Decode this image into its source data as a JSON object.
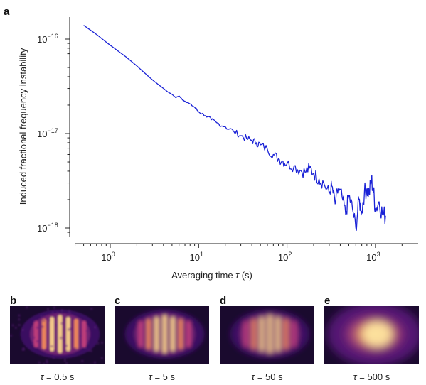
{
  "chart_data": [
    {
      "panel": "a",
      "type": "line",
      "xlabel_prefix": "Averaging time ",
      "xlabel_symbol": "τ",
      "xlabel_suffix": " (s)",
      "ylabel": "Induced fractional frequency instability",
      "xscale": "log",
      "yscale": "log",
      "xlim": [
        0.3,
        2000
      ],
      "ylim": [
        6e-19,
        2.2e-16
      ],
      "xticks": [
        {
          "value": 1,
          "base": "10",
          "exp": "0"
        },
        {
          "value": 10,
          "base": "10",
          "exp": "1"
        },
        {
          "value": 100,
          "base": "10",
          "exp": "2"
        },
        {
          "value": 1000,
          "base": "10",
          "exp": "3"
        }
      ],
      "yticks": [
        {
          "value": 1e-16,
          "base": "10",
          "exp": "−16"
        },
        {
          "value": 1e-17,
          "base": "10",
          "exp": "−17"
        },
        {
          "value": 1e-18,
          "base": "10",
          "exp": "−18"
        }
      ],
      "color": "#1a22d6",
      "series": [
        {
          "x": [
            0.5,
            0.7,
            1.0,
            1.5,
            2.0,
            2.5,
            3.0,
            3.5,
            4.0,
            4.5,
            5.0,
            5.5,
            6.0,
            6.5,
            7.0,
            8.0,
            9.0,
            10.0,
            12.0,
            14.0,
            16.0,
            20.0,
            25.0,
            30.0,
            35.0,
            40.0,
            45.0,
            50.0,
            60.0,
            70.0,
            80.0,
            90.0,
            100.0,
            120.0,
            140.0,
            160.0,
            180.0,
            200.0,
            230.0,
            260.0,
            300.0,
            320.0,
            350.0,
            380.0,
            420.0,
            460.0,
            500.0,
            550.0,
            600.0,
            650.0,
            700.0,
            750.0,
            800.0,
            850.0,
            900.0,
            950.0,
            1000.0,
            1100.0,
            1200.0,
            1300.0
          ],
          "y": [
            1.4e-16,
            1.12e-16,
            8.6e-17,
            6.5e-17,
            5.2e-17,
            4.3e-17,
            3.7e-17,
            3.3e-17,
            3e-17,
            2.75e-17,
            2.6e-17,
            2.4e-17,
            2.5e-17,
            2.3e-17,
            2.2e-17,
            2.05e-17,
            1.9e-17,
            1.7e-17,
            1.55e-17,
            1.4e-17,
            1.3e-17,
            1.18e-17,
            1.05e-17,
            9.5e-18,
            8.8e-18,
            8.5e-18,
            8e-18,
            7.6e-18,
            6.8e-18,
            6e-18,
            5.4e-18,
            5.1e-18,
            4.8e-18,
            4.5e-18,
            4.1e-18,
            3.9e-18,
            4.3e-18,
            3.8e-18,
            3.3e-18,
            3e-18,
            2.3e-18,
            2.8e-18,
            1.8e-18,
            2.6e-18,
            2.1e-18,
            1.4e-18,
            2.2e-18,
            1.6e-18,
            1e-18,
            2e-18,
            1.5e-18,
            2.4e-18,
            2.6e-18,
            2.3e-18,
            3.3e-18,
            2.4e-18,
            1.6e-18,
            1.9e-18,
            1.4e-18,
            1.35e-18
          ]
        }
      ]
    }
  ],
  "panels": [
    {
      "id": "b",
      "label": "b",
      "caption_value": " = 0.5 s",
      "palette": "magma"
    },
    {
      "id": "c",
      "label": "c",
      "caption_value": " = 5 s",
      "palette": "magma"
    },
    {
      "id": "d",
      "label": "d",
      "caption_value": " = 50 s",
      "palette": "magma"
    },
    {
      "id": "e",
      "label": "e",
      "caption_value": " = 500 s",
      "palette": "magma"
    }
  ],
  "caption_symbol": "τ"
}
